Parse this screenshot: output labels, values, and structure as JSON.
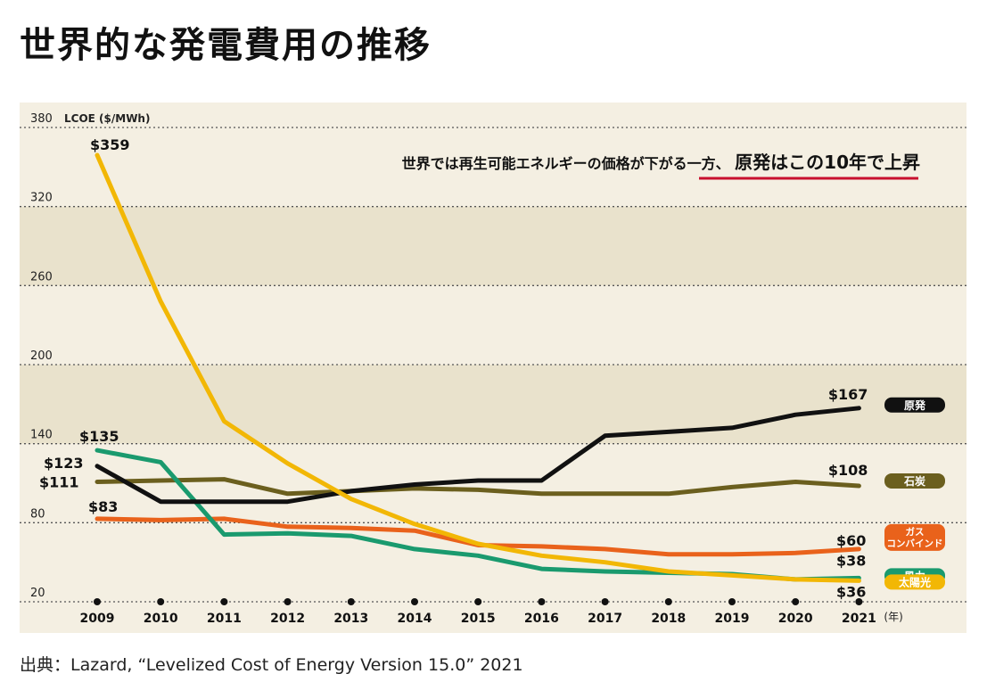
{
  "title": "世界的な発電費用の推移",
  "source": "出典：Lazard, “Levelized Cost of Energy Version 15.0”  2021",
  "colors": {
    "background": "#f4efe2",
    "band": "#e9e2cc",
    "nuclear": "#111111",
    "coal": "#6b5f1e",
    "gas": "#e9621b",
    "wind": "#1a9a6e",
    "solar": "#f2b705",
    "underline": "#c8102e"
  },
  "chart_data": {
    "type": "line",
    "ylabel": "LCOE ($/MWh)",
    "ylim": [
      20,
      380
    ],
    "yticks": [
      380,
      320,
      260,
      200,
      140,
      80,
      20
    ],
    "x": [
      "2009",
      "2010",
      "2011",
      "2012",
      "2013",
      "2014",
      "2015",
      "2016",
      "2017",
      "2018",
      "2019",
      "2020",
      "2021"
    ],
    "x_unit": "(年)",
    "annotation": {
      "text_plain": "世界では再生可能エネルギーの価格が下がる一方、",
      "text_emphasis": "原発はこの10年で上昇"
    },
    "series": [
      {
        "name": "原発",
        "color_key": "nuclear",
        "values": [
          123,
          96,
          96,
          96,
          104,
          109,
          112,
          112,
          146,
          149,
          152,
          162,
          167
        ],
        "start_label": "$123",
        "end_label": "$167"
      },
      {
        "name": "石炭",
        "color_key": "coal",
        "values": [
          111,
          112,
          113,
          102,
          104,
          106,
          105,
          102,
          102,
          102,
          107,
          111,
          108
        ],
        "start_label": "$111",
        "end_label": "$108"
      },
      {
        "name": "ガス\nコンバインド",
        "color_key": "gas",
        "values": [
          83,
          82,
          83,
          77,
          76,
          74,
          63,
          62,
          60,
          56,
          56,
          57,
          60
        ],
        "start_label": "$83",
        "end_label": "$60"
      },
      {
        "name": "風力",
        "color_key": "wind",
        "values": [
          135,
          126,
          71,
          72,
          70,
          60,
          55,
          45,
          43,
          42,
          41,
          37,
          38
        ],
        "start_label": "$135",
        "end_label": "$38"
      },
      {
        "name": "太陽光",
        "color_key": "solar",
        "values": [
          359,
          248,
          157,
          125,
          98,
          79,
          64,
          55,
          50,
          43,
          40,
          37,
          36
        ],
        "start_label": "$359",
        "end_label": "$36"
      }
    ],
    "legend_placement": "right, beside line ends"
  }
}
